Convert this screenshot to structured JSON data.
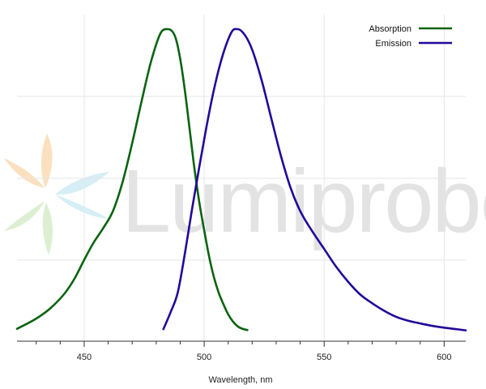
{
  "watermark": {
    "text": "Lumiprobe",
    "colors": {
      "orange": "#fbe0c0",
      "green": "#dcefd2",
      "blue": "#d6eef6",
      "text": "#e3e3e3"
    }
  },
  "chart_data": {
    "type": "line",
    "title": "",
    "xlabel": "Wavelength, nm",
    "ylabel": "",
    "xlim": [
      422,
      609
    ],
    "ylim": [
      0,
      1.03
    ],
    "xticks": [
      450,
      500,
      550,
      600
    ],
    "xtick_labels": [
      "450",
      "500",
      "550",
      "600"
    ],
    "minor_xticks": [
      430,
      440,
      460,
      470,
      480,
      490,
      510,
      520,
      530,
      540,
      560,
      570,
      580,
      590
    ],
    "grid": true,
    "legend_position": "top-right",
    "series": [
      {
        "name": "Absorption",
        "color": "#0a6310",
        "x": [
          422,
          430,
          436,
          442,
          446,
          450,
          454,
          458,
          462,
          466,
          470,
          474,
          478,
          482,
          485,
          488,
          490,
          492,
          494,
          496,
          498,
          500,
          502,
          504,
          506,
          508,
          510,
          512,
          514,
          516,
          518
        ],
        "y": [
          0.006,
          0.04,
          0.075,
          0.125,
          0.173,
          0.235,
          0.293,
          0.341,
          0.397,
          0.493,
          0.622,
          0.764,
          0.897,
          0.989,
          1.0,
          0.973,
          0.902,
          0.794,
          0.664,
          0.534,
          0.424,
          0.333,
          0.248,
          0.179,
          0.127,
          0.088,
          0.054,
          0.03,
          0.014,
          0.006,
          0.002
        ]
      },
      {
        "name": "Emission",
        "color": "#230799",
        "x": [
          483,
          486,
          489,
          492,
          495,
          498,
          501,
          504,
          507,
          510,
          512,
          514,
          517,
          520,
          524,
          528,
          532,
          536,
          540,
          545,
          550,
          555,
          560,
          565,
          570,
          575,
          580,
          585,
          590,
          595,
          600,
          605,
          609
        ],
        "y": [
          0.005,
          0.061,
          0.127,
          0.258,
          0.406,
          0.545,
          0.678,
          0.797,
          0.894,
          0.966,
          0.997,
          1.0,
          0.98,
          0.932,
          0.829,
          0.703,
          0.579,
          0.474,
          0.397,
          0.33,
          0.271,
          0.212,
          0.162,
          0.12,
          0.091,
          0.066,
          0.046,
          0.033,
          0.024,
          0.016,
          0.01,
          0.005,
          0.001
        ]
      }
    ]
  }
}
